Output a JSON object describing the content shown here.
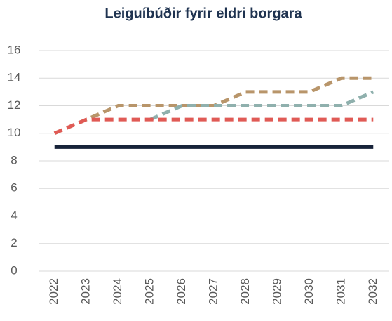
{
  "chart_data": {
    "type": "line",
    "title": "Leiguíbúðir fyrir eldri borgara",
    "categories": [
      "2022",
      "2023",
      "2024",
      "2025",
      "2026",
      "2027",
      "2028",
      "2029",
      "2030",
      "2031",
      "2032"
    ],
    "series": [
      {
        "color": "#172339",
        "dash": false,
        "values": [
          9,
          9,
          9,
          9,
          9,
          9,
          9,
          9,
          9,
          9,
          9
        ]
      },
      {
        "color": "#b8956a",
        "dash": true,
        "values": [
          10,
          11,
          12,
          12,
          12,
          12,
          13,
          13,
          13,
          14,
          14
        ]
      },
      {
        "color": "#8fb0ad",
        "dash": true,
        "values": [
          null,
          null,
          null,
          11,
          12,
          12,
          12,
          12,
          12,
          12,
          13
        ]
      },
      {
        "color": "#e05a55",
        "dash": true,
        "values": [
          10,
          11,
          11,
          11,
          11,
          11,
          11,
          11,
          11,
          11,
          11
        ]
      }
    ],
    "ylim": [
      0,
      16
    ],
    "yticks": [
      0,
      2,
      4,
      6,
      8,
      10,
      12,
      14,
      16
    ],
    "grid": true
  }
}
